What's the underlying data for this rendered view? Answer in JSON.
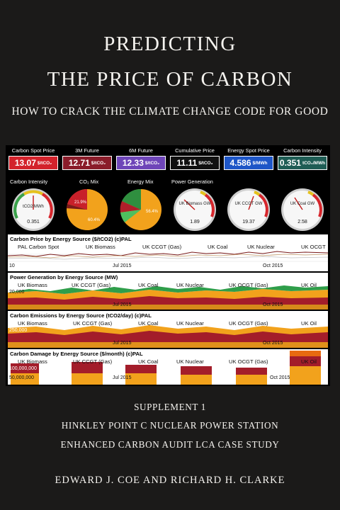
{
  "cover": {
    "title_line1": "PREDICTING",
    "title_line2": "THE PRICE OF CARBON",
    "subtitle": "HOW TO CRACK THE CLIMATE CHANGE CODE FOR GOOD",
    "supplement": "SUPPLEMENT 1",
    "supplement_line2": "HINKLEY POINT C NUCLEAR POWER STATION",
    "supplement_line3": "ENHANCED CARBON AUDIT LCA CASE STUDY",
    "authors": "EDWARD J. COE AND RICHARD H. CLARKE"
  },
  "tiles": [
    {
      "label": "Carbon Spot Price",
      "value": "13.07",
      "unit": "$/tCO₂",
      "color": "#d3222b"
    },
    {
      "label": "3M Future",
      "value": "12.71",
      "unit": "$/tCO₂",
      "color": "#8a1c2a"
    },
    {
      "label": "6M Future",
      "value": "12.33",
      "unit": "$/tCO₂",
      "color": "#6e45b8"
    },
    {
      "label": "Cumulative Price",
      "value": "11.11",
      "unit": "$/tCO₂",
      "color": "#111111"
    },
    {
      "label": "Energy Spot Price",
      "value": "4.586",
      "unit": "$/MWh",
      "color": "#1e56c7"
    },
    {
      "label": "Carbon Intensity",
      "value": "0.351",
      "unit": "tCO₂/MWh",
      "color": "#1f5d55"
    }
  ],
  "gauges": {
    "row_label_1": "Carbon Intensity",
    "row_label_2": "CO₂ Mix",
    "row_label_3": "Energy Mix",
    "row_label_4": "Power Generation",
    "g1": {
      "inner": "tCO2/MWh",
      "value": "0.351",
      "level": 0.45
    },
    "co2_mix": {
      "pct_a": "21.9%",
      "pct_b": "60.4%"
    },
    "energy_mix": {
      "pct": "56.4%"
    },
    "g4": {
      "inner": "UK Biomass GW",
      "value": "1.89",
      "level": 0.25
    },
    "g5": {
      "inner": "UK CCGT GW",
      "value": "19.37",
      "level": 0.6
    },
    "g6": {
      "inner": "UK Coal GW",
      "value": "2.58",
      "level": 0.3
    }
  },
  "panels": {
    "price": {
      "title": "Carbon Price by Energy Source ($/tCO2) (c)PAL",
      "legend": [
        "PAL Carbon Spot",
        "UK Biomass",
        "UK CCGT (Gas)",
        "UK Coal",
        "UK Nuclear",
        "UK OCGT"
      ],
      "x_ticks": [
        "Jul 2015",
        "Oct 2015"
      ],
      "y_ticks": [
        "10"
      ]
    },
    "power": {
      "title": "Power Generation by Energy Source (MW)",
      "legend": [
        "UK Biomass",
        "UK CCGT (Gas)",
        "UK Coal",
        "UK Nuclear",
        "UK OCGT (Gas)",
        "UK Oil"
      ],
      "x_ticks": [
        "Jul 2015",
        "Oct 2015"
      ],
      "y_ticks": [
        "20,000"
      ]
    },
    "emissions": {
      "title": "Carbon Emissions by Energy Source (tCO2/day) (c)PAL",
      "legend": [
        "UK Biomass",
        "UK CCGT (Gas)",
        "UK Coal",
        "UK Nuclear",
        "UK OCGT (Gas)",
        "UK Oil"
      ],
      "x_ticks": [
        "Jul 2015",
        "Oct 2015"
      ],
      "y_ticks": [
        "250,000"
      ]
    },
    "damage": {
      "title": "Carbon Damage by Energy Source ($/month) (c)PAL",
      "legend": [
        "UK Biomass",
        "UK CCGT (Gas)",
        "UK Coal",
        "UK Nuclear",
        "UK OCGT (Gas)",
        "UK Oil"
      ],
      "x_ticks": [
        "Jul 2015",
        "Oct 2015"
      ],
      "y_ticks": [
        "100,000,000",
        "50,000,000"
      ]
    }
  },
  "colors": {
    "biomass": "#7a1a1a",
    "ccgt": "#f0a020",
    "coal": "#9b1b2a",
    "nuclear": "#2e9e4a",
    "ocgt": "#f07050",
    "oil": "#e86a10"
  }
}
